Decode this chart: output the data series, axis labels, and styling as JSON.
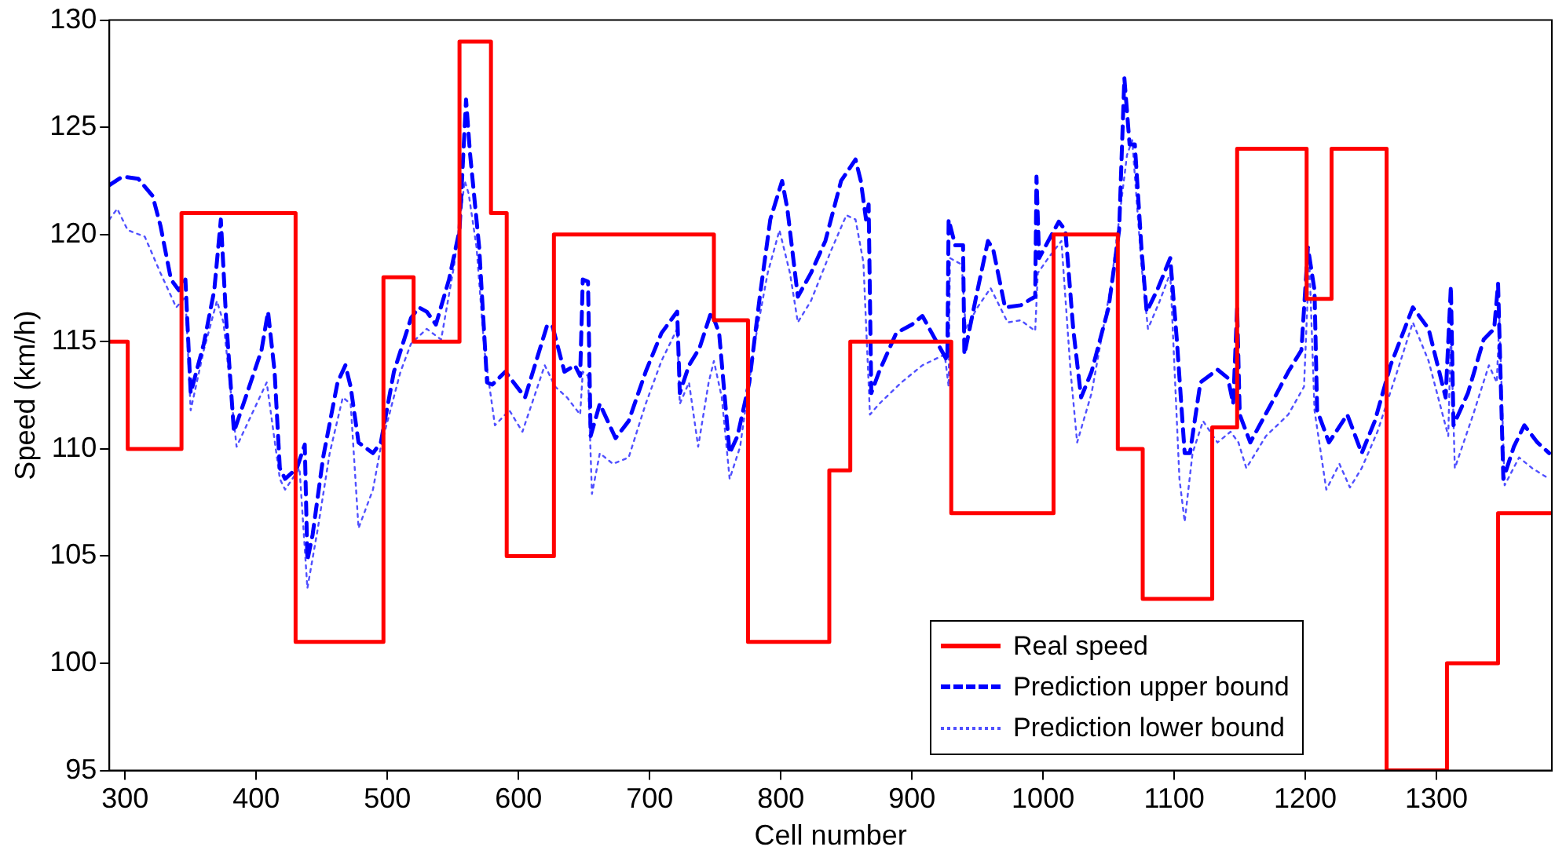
{
  "chart_data": {
    "type": "line",
    "xlabel": "Cell number",
    "ylabel": "Speed (km/h)",
    "xlim": [
      288,
      1388
    ],
    "ylim": [
      95,
      130
    ],
    "xticks": [
      300,
      400,
      500,
      600,
      700,
      800,
      900,
      1000,
      1100,
      1200,
      1300
    ],
    "yticks": [
      95,
      100,
      105,
      110,
      115,
      120,
      125,
      130
    ],
    "legend": "bottom right",
    "marker": "none",
    "series": [
      {
        "name": "Real speed",
        "type": "step",
        "color": "#ff0000",
        "line_style": "solid",
        "x": [
          288,
          302,
          343,
          430,
          497,
          520,
          555,
          579,
          591,
          627,
          749,
          775,
          837,
          853,
          930,
          1008,
          1057,
          1076,
          1129,
          1148,
          1201,
          1220,
          1262,
          1308,
          1347,
          1388
        ],
        "values": [
          115,
          110,
          121,
          101,
          118,
          115,
          129,
          121,
          105,
          120,
          116,
          101,
          109,
          115,
          107,
          120,
          110,
          103,
          111,
          124,
          117,
          124,
          95,
          100,
          107,
          107
        ]
      },
      {
        "name": "Prediction upper bound",
        "color": "#0000ff",
        "line_style": "dashed",
        "x": [
          288,
          298,
          310,
          321,
          327,
          335,
          341,
          346,
          350,
          360,
          368,
          373,
          377,
          383,
          393,
          404,
          409,
          414,
          418,
          422,
          431,
          437,
          439,
          443,
          451,
          462,
          468,
          472,
          478,
          489,
          495,
          505,
          518,
          524,
          530,
          537,
          547,
          555,
          560,
          563,
          570,
          576,
          580,
          590,
          605,
          622,
          626,
          635,
          643,
          647,
          649,
          653,
          655,
          662,
          674,
          684,
          697,
          709,
          721,
          723,
          730,
          738,
          747,
          753,
          761,
          767,
          776,
          784,
          792,
          801,
          805,
          813,
          823,
          834,
          846,
          857,
          861,
          865,
          867,
          869,
          875,
          888,
          900,
          908,
          917,
          927,
          928,
          933,
          939,
          940,
          950,
          958,
          962,
          971,
          983,
          991,
          994,
          995,
          997,
          1004,
          1012,
          1017,
          1023,
          1029,
          1037,
          1050,
          1058,
          1062,
          1066,
          1070,
          1075,
          1079,
          1087,
          1097,
          1102,
          1108,
          1112,
          1120,
          1133,
          1141,
          1145,
          1148,
          1150,
          1158,
          1174,
          1187,
          1197,
          1202,
          1207,
          1209,
          1218,
          1232,
          1243,
          1253,
          1265,
          1282,
          1294,
          1307,
          1311,
          1313,
          1324,
          1336,
          1344,
          1347,
          1351,
          1359,
          1367,
          1377,
          1386
        ],
        "values": [
          122.3,
          122.7,
          122.6,
          121.8,
          120.4,
          117.9,
          117.4,
          117.9,
          112.6,
          114.9,
          117.4,
          120.7,
          116.1,
          110.8,
          112.6,
          114.6,
          116.4,
          113.6,
          109.1,
          108.6,
          109.1,
          110.2,
          104.8,
          106.0,
          109.6,
          113.1,
          113.9,
          112.9,
          110.3,
          109.8,
          110.3,
          113.6,
          116.1,
          116.6,
          116.4,
          115.8,
          117.9,
          120.2,
          126.3,
          123.8,
          119.4,
          113.1,
          113.0,
          113.6,
          112.4,
          115.8,
          115.7,
          113.6,
          113.9,
          113.4,
          117.9,
          117.8,
          110.6,
          112.1,
          110.5,
          111.3,
          113.6,
          115.4,
          116.4,
          112.6,
          113.9,
          114.7,
          116.4,
          115.4,
          109.8,
          110.6,
          113.1,
          117.1,
          120.7,
          122.5,
          121.2,
          117.1,
          118.2,
          119.7,
          122.5,
          123.5,
          122.5,
          120.7,
          121.4,
          112.6,
          113.6,
          115.4,
          115.8,
          116.2,
          115.2,
          114.1,
          120.7,
          119.5,
          119.5,
          114.4,
          117.4,
          119.7,
          119.3,
          116.6,
          116.7,
          117.0,
          117.1,
          122.7,
          118.9,
          119.7,
          120.6,
          120.2,
          115.6,
          112.4,
          113.6,
          116.6,
          120.2,
          127.3,
          124.2,
          124.2,
          119.4,
          116.4,
          117.4,
          118.9,
          115.1,
          109.8,
          109.8,
          113.1,
          113.7,
          113.3,
          112.1,
          116.6,
          111.6,
          110.3,
          112.1,
          113.6,
          114.6,
          119.4,
          117.4,
          111.8,
          110.3,
          111.6,
          109.8,
          111.3,
          113.9,
          116.6,
          115.6,
          112.4,
          117.6,
          111.1,
          112.6,
          115.1,
          115.6,
          117.7,
          108.6,
          110.1,
          111.1,
          110.3,
          109.8
        ]
      },
      {
        "name": "Prediction lower bound",
        "color": "#5050ff",
        "line_style": "dotted",
        "x": [
          288,
          294,
          302,
          315,
          327,
          339,
          346,
          350,
          360,
          370,
          375,
          385,
          398,
          408,
          418,
          422,
          433,
          439,
          447,
          456,
          466,
          472,
          478,
          489,
          495,
          510,
          518,
          530,
          541,
          551,
          559,
          562,
          568,
          574,
          582,
          593,
          603,
          620,
          628,
          637,
          647,
          649,
          653,
          656,
          662,
          672,
          684,
          697,
          709,
          721,
          723,
          730,
          737,
          745,
          749,
          755,
          761,
          769,
          780,
          790,
          799,
          807,
          813,
          823,
          838,
          850,
          857,
          863,
          868,
          875,
          892,
          908,
          925,
          928,
          929,
          938,
          941,
          950,
          960,
          973,
          983,
          994,
          996,
          1004,
          1014,
          1021,
          1026,
          1037,
          1052,
          1060,
          1064,
          1068,
          1075,
          1080,
          1089,
          1097,
          1104,
          1108,
          1114,
          1122,
          1133,
          1143,
          1149,
          1155,
          1170,
          1187,
          1199,
          1203,
          1207,
          1216,
          1226,
          1234,
          1243,
          1255,
          1270,
          1282,
          1294,
          1309,
          1311,
          1314,
          1328,
          1340,
          1346,
          1348,
          1352,
          1363,
          1373,
          1386
        ],
        "values": [
          120.7,
          121.2,
          120.2,
          119.9,
          118.2,
          116.6,
          117.1,
          111.8,
          114.6,
          116.9,
          115.9,
          110.1,
          111.8,
          113.1,
          108.6,
          108.1,
          109.1,
          103.5,
          106.3,
          109.8,
          112.4,
          112.1,
          106.3,
          108.1,
          110.1,
          113.6,
          114.9,
          115.6,
          115.1,
          118.6,
          122.5,
          121.9,
          119.4,
          114.6,
          111.1,
          111.8,
          110.8,
          113.9,
          112.9,
          112.4,
          111.6,
          113.6,
          113.4,
          107.9,
          109.8,
          109.3,
          109.6,
          112.1,
          114.1,
          115.6,
          112.1,
          113.1,
          110.1,
          113.1,
          114.1,
          112.4,
          108.6,
          110.1,
          114.9,
          118.2,
          120.2,
          118.2,
          115.9,
          116.9,
          119.2,
          120.9,
          120.7,
          118.7,
          111.6,
          112.1,
          113.1,
          113.9,
          114.4,
          112.9,
          118.9,
          118.6,
          115.6,
          116.6,
          117.5,
          115.9,
          116.0,
          115.5,
          118.2,
          118.9,
          119.7,
          113.6,
          110.3,
          112.6,
          117.7,
          121.7,
          123.7,
          124.4,
          118.6,
          115.6,
          116.9,
          118.2,
          108.6,
          106.6,
          109.8,
          111.3,
          110.3,
          110.8,
          110.3,
          109.1,
          110.6,
          111.6,
          112.9,
          118.9,
          111.8,
          108.1,
          109.3,
          108.2,
          109.1,
          110.8,
          113.6,
          115.9,
          114.1,
          110.6,
          115.6,
          109.1,
          111.6,
          113.9,
          113.1,
          116.1,
          108.3,
          109.6,
          109.1,
          108.6
        ]
      }
    ]
  }
}
